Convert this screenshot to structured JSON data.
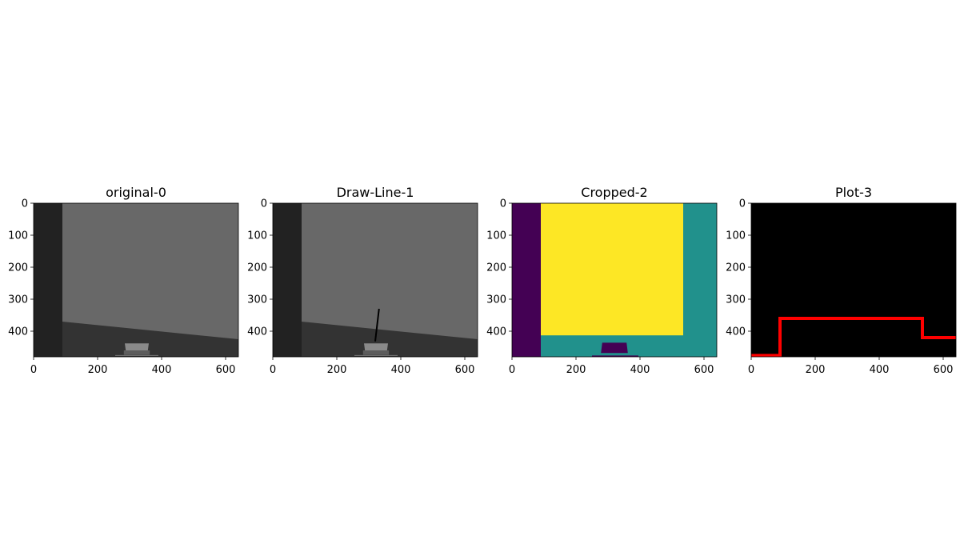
{
  "chart_data": [
    {
      "type": "image",
      "title": "original-0",
      "xlim": [
        0,
        640
      ],
      "ylim": [
        480,
        0
      ],
      "xticks": [
        0,
        200,
        400,
        600
      ],
      "yticks": [
        0,
        100,
        200,
        300,
        400
      ],
      "colors": {
        "wall_left": "#222222",
        "wall": "#686868",
        "floor": "#333333",
        "object": "#8a8a8a",
        "object_dark": "#5c5c5c"
      },
      "regions": {
        "wall_left_x": 90,
        "floor_boundary": [
          [
            90,
            370
          ],
          [
            640,
            425
          ]
        ],
        "object_top": [
          [
            285,
            438
          ],
          [
            360,
            438
          ],
          [
            357,
            460
          ],
          [
            288,
            460
          ]
        ],
        "object_base": [
          [
            282,
            460
          ],
          [
            363,
            460
          ],
          [
            363,
            474
          ],
          [
            282,
            474
          ]
        ],
        "object_shadow": [
          [
            255,
            476
          ],
          [
            390,
            476
          ]
        ]
      }
    },
    {
      "type": "image",
      "title": "Draw-Line-1",
      "xlim": [
        0,
        640
      ],
      "ylim": [
        480,
        0
      ],
      "xticks": [
        0,
        200,
        400,
        600
      ],
      "yticks": [
        0,
        100,
        200,
        300,
        400
      ],
      "colors": {
        "wall_left": "#222222",
        "wall": "#686868",
        "floor": "#333333",
        "object": "#8a8a8a",
        "object_dark": "#5c5c5c",
        "line": "#000000"
      },
      "regions": {
        "wall_left_x": 90,
        "floor_boundary": [
          [
            90,
            370
          ],
          [
            640,
            425
          ]
        ],
        "object_top": [
          [
            285,
            438
          ],
          [
            360,
            438
          ],
          [
            357,
            460
          ],
          [
            288,
            460
          ]
        ],
        "object_base": [
          [
            282,
            460
          ],
          [
            363,
            460
          ],
          [
            363,
            474
          ],
          [
            282,
            474
          ]
        ],
        "object_shadow": [
          [
            255,
            476
          ],
          [
            390,
            476
          ]
        ],
        "drawn_line": [
          [
            320,
            432
          ],
          [
            332,
            330
          ]
        ]
      }
    },
    {
      "type": "heatmap",
      "title": "Cropped-2",
      "xlim": [
        0,
        640
      ],
      "ylim": [
        480,
        0
      ],
      "xticks": [
        0,
        200,
        400,
        600
      ],
      "yticks": [
        0,
        100,
        200,
        300,
        400
      ],
      "colors": {
        "low": "#440154",
        "mid": "#21918c",
        "high": "#fde725"
      },
      "regions": {
        "background": "mid",
        "left_band_x": 90,
        "high_rect": {
          "x0": 90,
          "x1": 535,
          "y0": 0,
          "y1": 413
        },
        "low_object": [
          [
            282,
            436
          ],
          [
            358,
            436
          ],
          [
            362,
            468
          ],
          [
            278,
            468
          ]
        ],
        "low_base": [
          [
            250,
            476
          ],
          [
            395,
            476
          ],
          [
            395,
            480
          ],
          [
            250,
            480
          ]
        ]
      }
    },
    {
      "type": "line",
      "title": "Plot-3",
      "xlim": [
        0,
        640
      ],
      "ylim": [
        480,
        0
      ],
      "xticks": [
        0,
        200,
        400,
        600
      ],
      "yticks": [
        0,
        100,
        200,
        300,
        400
      ],
      "background": "#000000",
      "line_color": "#ff0000",
      "x": [
        0,
        90,
        90,
        535,
        535,
        640
      ],
      "y": [
        476,
        476,
        360,
        360,
        420,
        420
      ]
    }
  ]
}
